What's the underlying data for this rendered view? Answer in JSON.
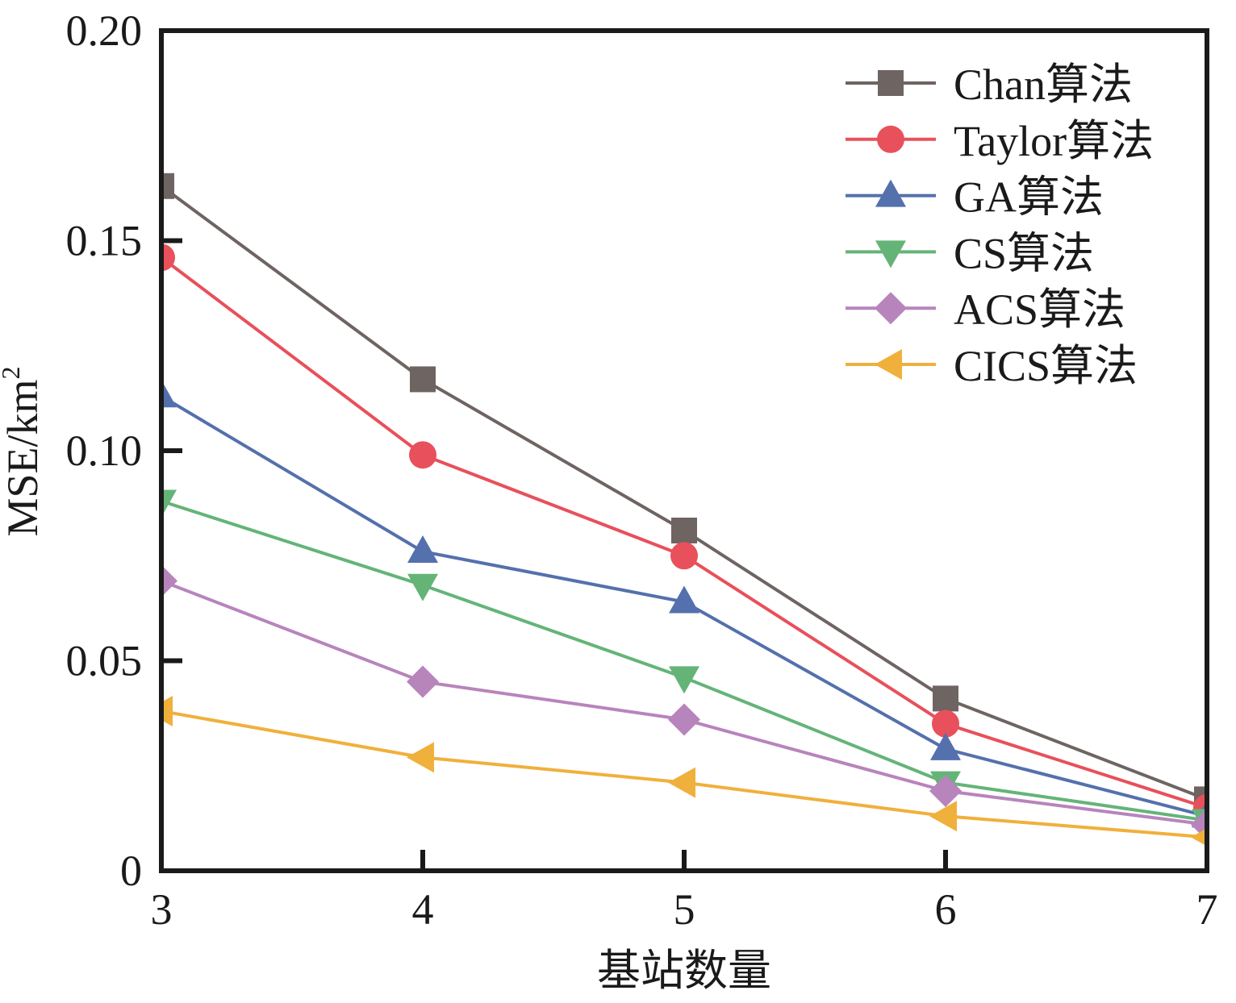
{
  "chart_data": {
    "type": "line",
    "title": "",
    "xlabel": "基站数量",
    "ylabel": "MSE/km",
    "ylabel_superscript": "2",
    "x": [
      3,
      4,
      5,
      6,
      7
    ],
    "xlim": [
      3,
      7
    ],
    "ylim": [
      0,
      0.2
    ],
    "xticks": [
      3,
      4,
      5,
      6,
      7
    ],
    "xtick_labels": [
      "3",
      "4",
      "5",
      "6",
      "7"
    ],
    "yticks": [
      0,
      0.05,
      0.1,
      0.15,
      0.2
    ],
    "ytick_labels": [
      "0",
      "0.05",
      "0.10",
      "0.15",
      "0.20"
    ],
    "grid": false,
    "legend_position": "top-right",
    "series": [
      {
        "name": "Chan算法",
        "marker": "square",
        "color": "#6e6462",
        "values": [
          0.163,
          0.117,
          0.081,
          0.041,
          0.017
        ]
      },
      {
        "name": "Taylor算法",
        "marker": "circle",
        "color": "#e8505b",
        "values": [
          0.146,
          0.099,
          0.075,
          0.035,
          0.015
        ]
      },
      {
        "name": "GA算法",
        "marker": "triangle-up",
        "color": "#5470ad",
        "values": [
          0.113,
          0.076,
          0.064,
          0.029,
          0.013
        ]
      },
      {
        "name": "CS算法",
        "marker": "triangle-down",
        "color": "#64b478",
        "values": [
          0.088,
          0.068,
          0.046,
          0.021,
          0.012
        ]
      },
      {
        "name": "ACS算法",
        "marker": "diamond",
        "color": "#b884bc",
        "values": [
          0.069,
          0.045,
          0.036,
          0.019,
          0.011
        ]
      },
      {
        "name": "CICS算法",
        "marker": "triangle-left",
        "color": "#f0b03c",
        "values": [
          0.038,
          0.027,
          0.021,
          0.013,
          0.008
        ]
      }
    ]
  }
}
